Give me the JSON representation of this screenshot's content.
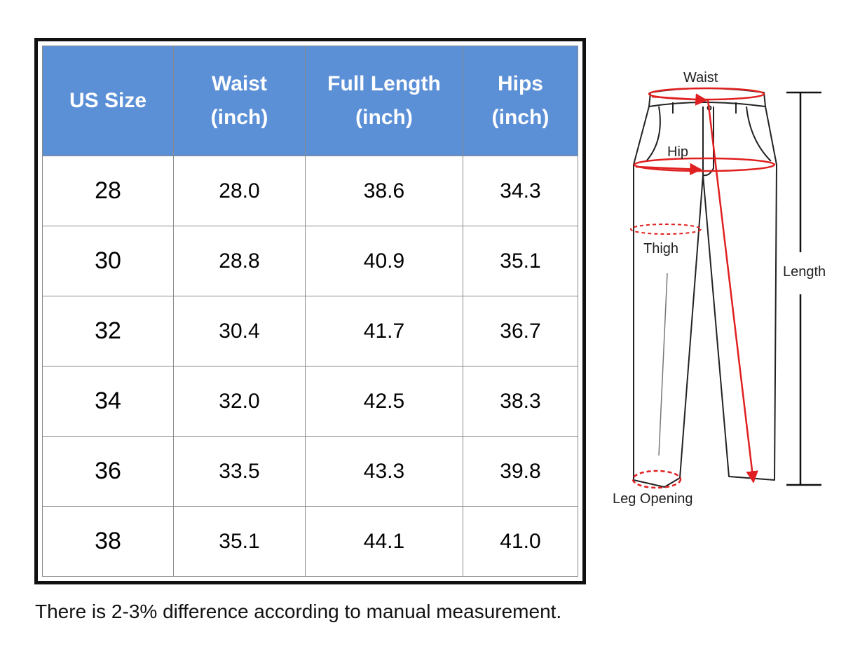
{
  "table": {
    "headers": [
      [
        "US Size"
      ],
      [
        "Waist",
        "(inch)"
      ],
      [
        "Full Length",
        "(inch)"
      ],
      [
        "Hips",
        "(inch)"
      ]
    ],
    "rows": [
      [
        "28",
        "28.0",
        "38.6",
        "34.3"
      ],
      [
        "30",
        "28.8",
        "40.9",
        "35.1"
      ],
      [
        "32",
        "30.4",
        "41.7",
        "36.7"
      ],
      [
        "34",
        "32.0",
        "42.5",
        "38.3"
      ],
      [
        "36",
        "33.5",
        "43.3",
        "39.8"
      ],
      [
        "38",
        "35.1",
        "44.1",
        "41.0"
      ]
    ],
    "header_color": "#5b8fd6"
  },
  "diagram": {
    "labels": {
      "waist": "Waist",
      "hip": "Hip",
      "thigh": "Thigh",
      "length": "Length",
      "leg_opening": "Leg Opening"
    },
    "measure_color": "#e02020"
  },
  "note": "There is 2-3% difference according to manual measurement."
}
